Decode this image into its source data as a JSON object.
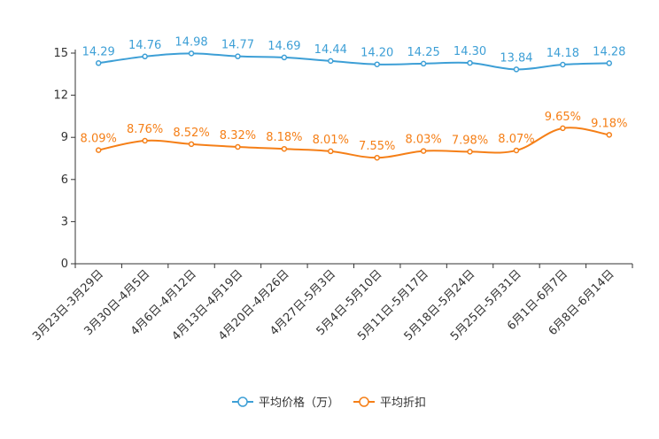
{
  "chart_data": {
    "type": "line",
    "categories": [
      "3月23日-3月29日",
      "3月30日-4月5日",
      "4月6日-4月12日",
      "4月13日-4月19日",
      "4月20日-4月26日",
      "4月27日-5月3日",
      "5月4日-5月10日",
      "5月11日-5月17日",
      "5月18日-5月24日",
      "5月25日-5月31日",
      "6月1日-6月7日",
      "6月8日-6月14日"
    ],
    "ylim": [
      0,
      15
    ],
    "yticks": [
      "0",
      "3",
      "6",
      "9",
      "12",
      "15"
    ],
    "series": [
      {
        "name": "平均价格（万）",
        "color": "#3d9fd6",
        "values": [
          14.29,
          14.76,
          14.98,
          14.77,
          14.69,
          14.44,
          14.2,
          14.25,
          14.3,
          13.84,
          14.18,
          14.28
        ],
        "labels": [
          "14.29",
          "14.76",
          "14.98",
          "14.77",
          "14.69",
          "14.44",
          "14.20",
          "14.25",
          "14.30",
          "13.84",
          "14.18",
          "14.28"
        ]
      },
      {
        "name": "平均折扣",
        "color": "#f57f17",
        "values": [
          8.09,
          8.76,
          8.52,
          8.32,
          8.18,
          8.01,
          7.55,
          8.03,
          7.98,
          8.07,
          9.65,
          9.18
        ],
        "labels": [
          "8.09%",
          "8.76%",
          "8.52%",
          "8.32%",
          "8.18%",
          "8.01%",
          "7.55%",
          "8.03%",
          "7.98%",
          "8.07%",
          "9.65%",
          "9.18%"
        ]
      }
    ],
    "legend_position": "bottom-center",
    "grid": false
  }
}
